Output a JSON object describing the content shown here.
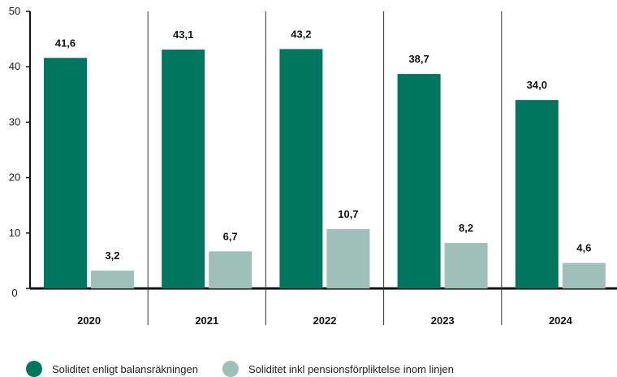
{
  "chart_data": {
    "type": "bar",
    "categories": [
      "2020",
      "2021",
      "2022",
      "2023",
      "2024"
    ],
    "series": [
      {
        "name": "Soliditet enligt balansräkningen",
        "color": "#00765f",
        "values": [
          41.6,
          43.1,
          43.2,
          38.7,
          34.0
        ],
        "labels": [
          "41,6",
          "43,1",
          "43,2",
          "38,7",
          "34,0"
        ]
      },
      {
        "name": "Soliditet inkl pensionsförpliktelse inom linjen",
        "color": "#9fc0b8",
        "values": [
          3.2,
          6.7,
          10.7,
          8.2,
          4.6
        ],
        "labels": [
          "3,2",
          "6,7",
          "10,7",
          "8,2",
          "4,6"
        ]
      }
    ],
    "yticks": [
      0,
      10,
      20,
      30,
      40,
      50
    ],
    "ylim": [
      0,
      50
    ],
    "grid": false,
    "legend": "bottom-left"
  }
}
